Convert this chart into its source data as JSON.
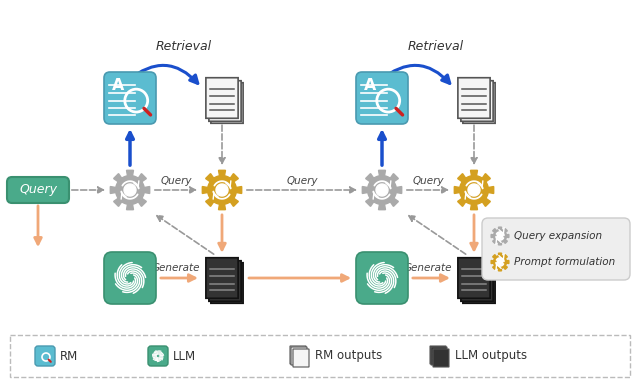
{
  "bg_color": "#ffffff",
  "gear_gray_color": "#aaaaaa",
  "gear_gold_color": "#d4a020",
  "arrow_blue": "#1a4fcc",
  "arrow_orange": "#f0a878",
  "arrow_gray": "#999999",
  "rm_bg": "#5bbcd0",
  "rm_border": "#4a9ab0",
  "llm_bg": "#4aaa8a",
  "llm_border": "#3a9070",
  "query_bg": "#4aaa8a",
  "query_border": "#3a9070",
  "query_text_color": "#ffffff",
  "doc_rm_face": "#f5f5f5",
  "doc_rm_edge": "#555555",
  "doc_llm_face": "#333333",
  "doc_llm_edge": "#111111",
  "legend_bg": "#eeeeee",
  "legend_edge": "#cccccc",
  "legend_gear_gray": "Query expansion",
  "legend_gear_gold": "Prompt formulation",
  "bottom_legend_items": [
    "RM",
    "LLM",
    "RM outputs",
    "LLM outputs"
  ],
  "bottom_icon_colors": [
    "#5bbcd0",
    "#4aaa8a",
    "#f5f5f5",
    "#333333"
  ],
  "bottom_icon_edges": [
    "#4a9ab0",
    "#3a9070",
    "#555555",
    "#111111"
  ]
}
